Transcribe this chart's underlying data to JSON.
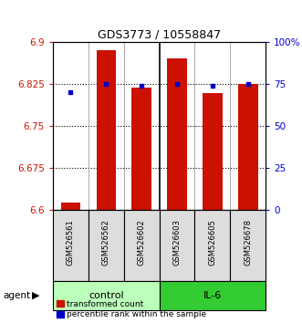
{
  "title": "GDS3773 / 10558847",
  "samples": [
    "GSM526561",
    "GSM526562",
    "GSM526602",
    "GSM526603",
    "GSM526605",
    "GSM526678"
  ],
  "bar_values": [
    6.614,
    6.885,
    6.818,
    6.87,
    6.808,
    6.825
  ],
  "pct_ranks": [
    70,
    75,
    74,
    75,
    74,
    75
  ],
  "ylim": [
    6.6,
    6.9
  ],
  "yticks_left": [
    6.6,
    6.675,
    6.75,
    6.825,
    6.9
  ],
  "yticks_right": [
    0,
    25,
    50,
    75,
    100
  ],
  "bar_color": "#cc1100",
  "dot_color": "#0000cc",
  "control_color": "#bbffbb",
  "il6_color": "#33cc33",
  "sample_box_color": "#dddddd",
  "legend_items": [
    {
      "label": "transformed count",
      "color": "#cc1100"
    },
    {
      "label": "percentile rank within the sample",
      "color": "#0000cc"
    }
  ],
  "left_tick_color": "#cc1100",
  "right_tick_color": "#0000cc",
  "bar_width": 0.55,
  "group_separator": 2.5
}
